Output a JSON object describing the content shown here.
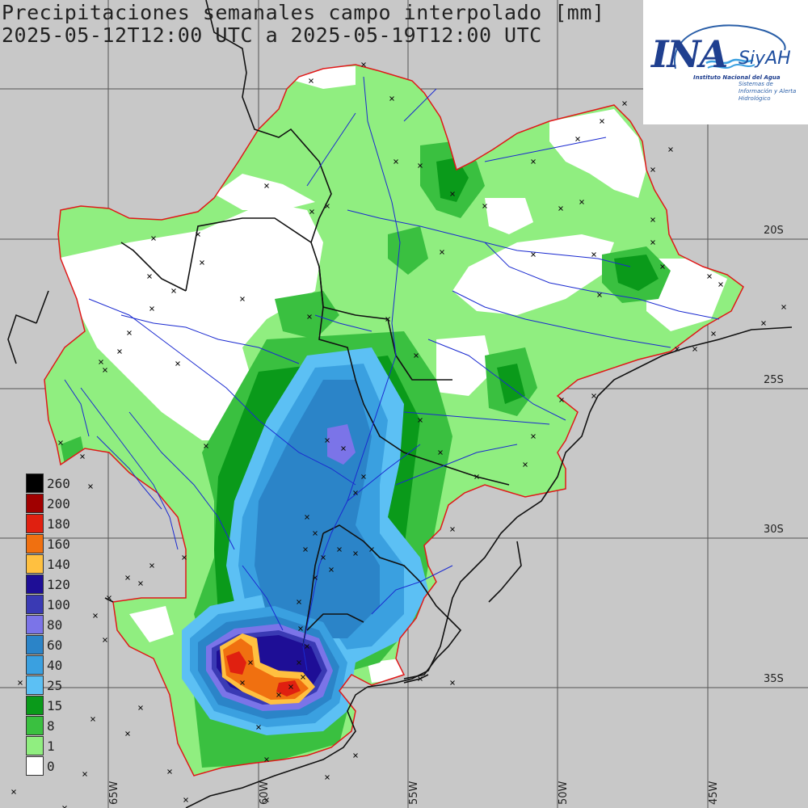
{
  "title": {
    "line1": "Precipitaciones semanales campo interpolado [mm]",
    "line2": "2025-05-12T12:00 UTC a 2025-05-19T12:00 UTC"
  },
  "logo": {
    "brand": "INA",
    "product": "SiyAH",
    "subtitle1": "Instituto Nacional del Agua",
    "subtitle2": "Sistemas de Información y Alerta Hidrológico",
    "color": "#1f3f8f"
  },
  "lat_labels": [
    "20S",
    "25S",
    "30S",
    "35S"
  ],
  "lon_labels": [
    "65W",
    "60W",
    "55W",
    "50W",
    "45W"
  ],
  "legend": {
    "items": [
      {
        "label": "260",
        "color": "#000000"
      },
      {
        "label": "200",
        "color": "#a00000"
      },
      {
        "label": "180",
        "color": "#e02010"
      },
      {
        "label": "160",
        "color": "#f07010"
      },
      {
        "label": "140",
        "color": "#ffc040"
      },
      {
        "label": "120",
        "color": "#1e0e96"
      },
      {
        "label": "100",
        "color": "#3a3ab4"
      },
      {
        "label": "80",
        "color": "#7b74e8"
      },
      {
        "label": "60",
        "color": "#2b84c8"
      },
      {
        "label": "40",
        "color": "#3aa0e0"
      },
      {
        "label": "25",
        "color": "#5cc0f4"
      },
      {
        "label": "15",
        "color": "#0a9a1a"
      },
      {
        "label": "8",
        "color": "#3ac040"
      },
      {
        "label": "1",
        "color": "#90ee80"
      },
      {
        "label": "0",
        "color": "#ffffff"
      }
    ]
  },
  "colors": {
    "background": "#c8c8c8",
    "basin_border": "#e01818",
    "country_border": "#111111",
    "river": "#1a2ad0",
    "grid": "#555555",
    "station_marker": "#111111"
  }
}
